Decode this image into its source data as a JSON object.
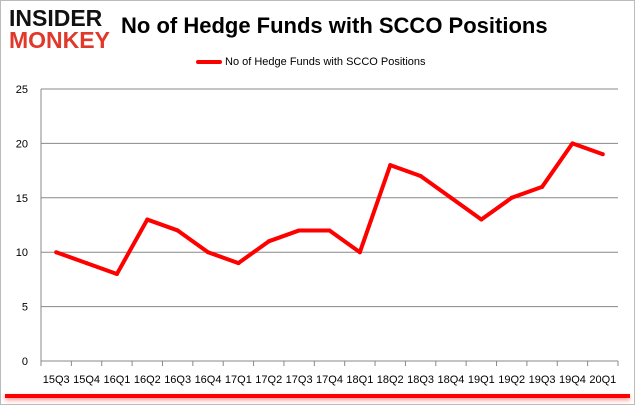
{
  "logo": {
    "line1": "INSIDER",
    "line2": "MONKEY"
  },
  "chart_data": {
    "type": "line",
    "title": "No of Hedge Funds with SCCO Positions",
    "legend": {
      "position": "top",
      "entries": [
        "No of Hedge Funds with SCCO Positions"
      ]
    },
    "xlabel": "",
    "ylabel": "",
    "categories": [
      "15Q3",
      "15Q4",
      "16Q1",
      "16Q2",
      "16Q3",
      "16Q4",
      "17Q1",
      "17Q2",
      "17Q3",
      "17Q4",
      "18Q1",
      "18Q2",
      "18Q3",
      "18Q4",
      "19Q1",
      "19Q2",
      "19Q3",
      "19Q4",
      "20Q1"
    ],
    "series": [
      {
        "name": "No of Hedge Funds with SCCO Positions",
        "color": "#ff0000",
        "values": [
          10,
          9,
          8,
          13,
          12,
          10,
          9,
          11,
          12,
          12,
          10,
          18,
          17,
          15,
          13,
          15,
          16,
          20,
          19
        ]
      }
    ],
    "ylim": [
      0,
      25
    ],
    "yticks": [
      0,
      5,
      10,
      15,
      20,
      25
    ],
    "grid": true
  }
}
